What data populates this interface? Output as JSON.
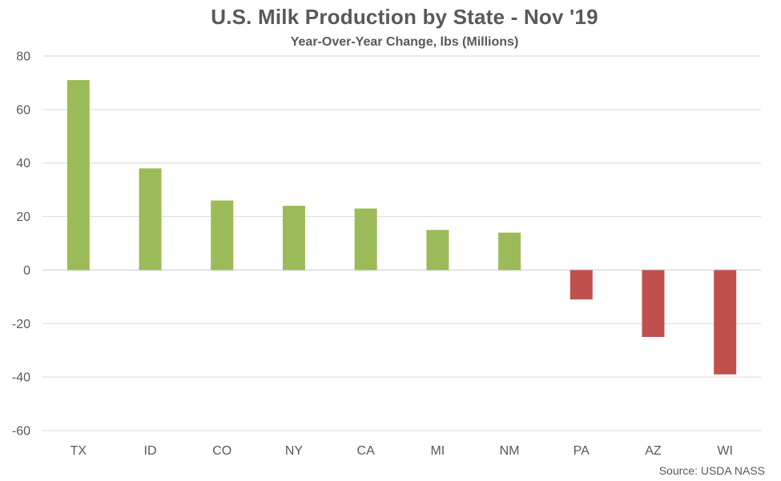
{
  "chart_data": {
    "type": "bar",
    "title": "U.S. Milk Production by State - Nov '19",
    "subtitle": "Year-Over-Year Change, lbs (Millions)",
    "xlabel": "",
    "ylabel": "",
    "categories": [
      "TX",
      "ID",
      "CO",
      "NY",
      "CA",
      "MI",
      "NM",
      "PA",
      "AZ",
      "WI"
    ],
    "values": [
      71,
      38,
      26,
      24,
      23,
      15,
      14,
      -11,
      -25,
      -39
    ],
    "ylim": [
      -60,
      80
    ],
    "yticks": [
      80,
      60,
      40,
      20,
      0,
      -20,
      -40,
      -60
    ],
    "grid": true,
    "legend": "none",
    "colors": {
      "positive": "#9bbb59",
      "negative": "#c0504d",
      "grid": "#d9d9d9",
      "text": "#595959"
    },
    "source": "Source: USDA NASS"
  }
}
